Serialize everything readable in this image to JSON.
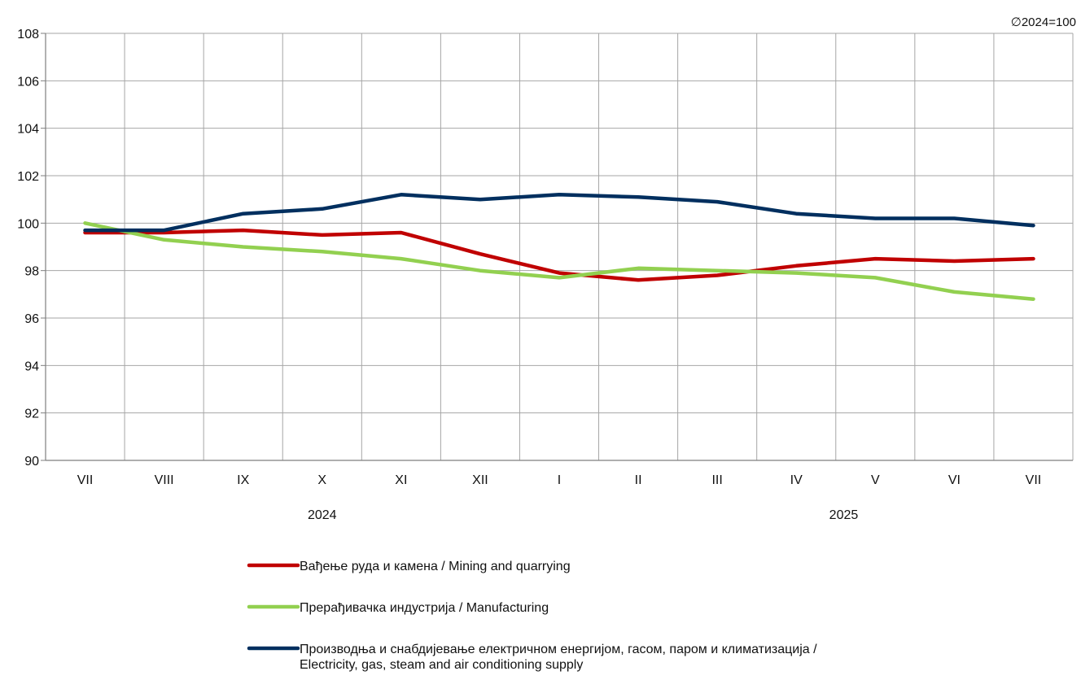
{
  "chart_data": {
    "type": "line",
    "base_note": "∅2024=100",
    "categories": [
      "VII",
      "VIII",
      "IX",
      "X",
      "XI",
      "XII",
      "I",
      "II",
      "III",
      "IV",
      "V",
      "VI",
      "VII"
    ],
    "year_labels": [
      {
        "label": "2024",
        "category_index": 3
      },
      {
        "label": "2025",
        "category_index": 9.6
      }
    ],
    "ylim": [
      90,
      108
    ],
    "yticks": [
      90,
      92,
      94,
      96,
      98,
      100,
      102,
      104,
      106,
      108
    ],
    "grid": true,
    "legend_position": "bottom",
    "series": [
      {
        "name": "Вађење руда и камена / Mining and quarrying",
        "color": "#c00000",
        "values": [
          99.6,
          99.6,
          99.7,
          99.5,
          99.6,
          98.7,
          97.9,
          97.6,
          97.8,
          98.2,
          98.5,
          98.4,
          98.5
        ]
      },
      {
        "name": "Прерађивачка индустрија / Manufacturing",
        "color": "#92d050",
        "values": [
          100.0,
          99.3,
          99.0,
          98.8,
          98.5,
          98.0,
          97.7,
          98.1,
          98.0,
          97.9,
          97.7,
          97.1,
          96.8
        ]
      },
      {
        "name": "Производња и снабдијевање електричном енергијом, гасом, паром и климатизација / Electricity, gas, steam and air conditioning supply",
        "color": "#002f5f",
        "values": [
          99.7,
          99.7,
          100.4,
          100.6,
          101.2,
          101.0,
          101.2,
          101.1,
          100.9,
          100.4,
          100.2,
          100.2,
          99.9
        ]
      }
    ]
  }
}
